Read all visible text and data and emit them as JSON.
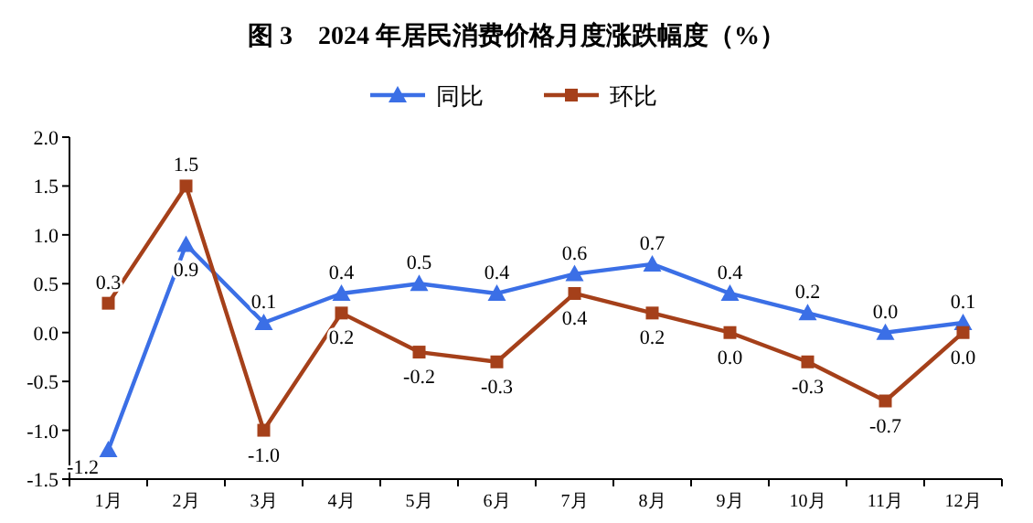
{
  "chart_data": {
    "type": "line",
    "title": "图 3　2024 年居民消费价格月度涨跌幅度（%）",
    "categories": [
      "1月",
      "2月",
      "3月",
      "4月",
      "5月",
      "6月",
      "7月",
      "8月",
      "9月",
      "10月",
      "11月",
      "12月"
    ],
    "series": [
      {
        "name": "同比",
        "color": "#3b6fe6",
        "marker": "triangle",
        "values": [
          -1.2,
          0.9,
          0.1,
          0.4,
          0.5,
          0.4,
          0.6,
          0.7,
          0.4,
          0.2,
          0.0,
          0.1
        ],
        "value_labels": [
          "-1.2",
          "0.9",
          "0.1",
          "0.4",
          "0.5",
          "0.4",
          "0.6",
          "0.7",
          "0.4",
          "0.2",
          "0.0",
          "0.1"
        ]
      },
      {
        "name": "环比",
        "color": "#a5401a",
        "marker": "square",
        "values": [
          0.3,
          1.5,
          -1.0,
          0.2,
          -0.2,
          -0.3,
          0.4,
          0.2,
          0.0,
          -0.3,
          -0.7,
          0.0
        ],
        "value_labels": [
          "0.3",
          "1.5",
          "-1.0",
          "0.2",
          "-0.2",
          "-0.3",
          "0.4",
          "0.2",
          "0.0",
          "-0.3",
          "-0.7",
          "0.0"
        ]
      }
    ],
    "ylim": [
      -1.5,
      2.0
    ],
    "yticks": [
      {
        "value": -1.5,
        "label": "-1.5"
      },
      {
        "value": -1.0,
        "label": "-1.0"
      },
      {
        "value": -0.5,
        "label": "-0.5"
      },
      {
        "value": 0,
        "label": "0.0"
      },
      {
        "value": 0.5,
        "label": "0.5"
      },
      {
        "value": 1.0,
        "label": "1.0"
      },
      {
        "value": 1.5,
        "label": "1.5"
      },
      {
        "value": 2.0,
        "label": "2.0"
      }
    ],
    "legend": "top",
    "grid": false,
    "line_style": "solid"
  }
}
